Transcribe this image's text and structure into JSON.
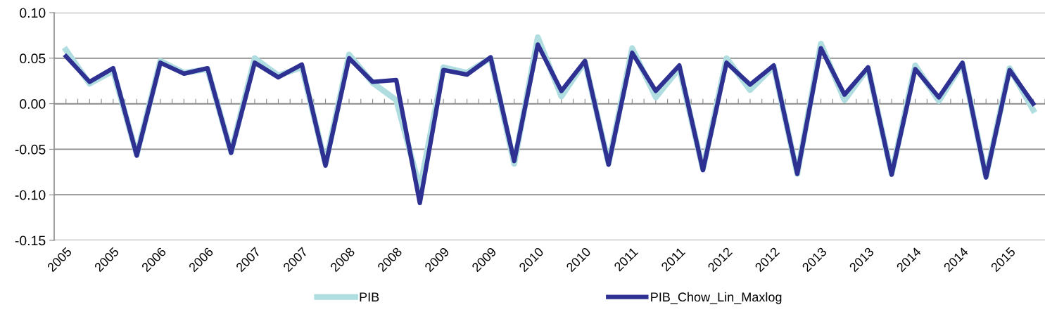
{
  "chart_data": {
    "type": "line",
    "categories": [
      "2005",
      null,
      "2005",
      null,
      "2006",
      null,
      "2006",
      null,
      "2007",
      null,
      "2007",
      null,
      "2008",
      null,
      "2008",
      null,
      "2009",
      null,
      "2009",
      null,
      "2010",
      null,
      "2010",
      null,
      "2011",
      null,
      "2011",
      null,
      "2012",
      null,
      "2012",
      null,
      "2013",
      null,
      "2013",
      null,
      "2014",
      null,
      "2014",
      null,
      "2015",
      null
    ],
    "series": [
      {
        "name": "PIB",
        "color": "#b0dde0",
        "values": [
          0.059,
          0.022,
          0.036,
          -0.056,
          0.047,
          0.034,
          0.038,
          -0.053,
          0.05,
          0.031,
          0.04,
          -0.066,
          0.054,
          0.023,
          0.004,
          -0.093,
          0.04,
          0.034,
          0.05,
          -0.066,
          0.073,
          0.008,
          0.046,
          -0.066,
          0.061,
          0.007,
          0.039,
          -0.072,
          0.05,
          0.015,
          0.041,
          -0.077,
          0.066,
          0.004,
          0.039,
          -0.077,
          0.042,
          0.003,
          0.044,
          -0.08,
          0.039,
          -0.007
        ]
      },
      {
        "name": "PIB_Chow_Lin_Maxlog",
        "color": "#2e3192",
        "values": [
          0.052,
          0.024,
          0.039,
          -0.057,
          0.045,
          0.033,
          0.039,
          -0.054,
          0.045,
          0.029,
          0.043,
          -0.068,
          0.05,
          0.024,
          0.026,
          -0.109,
          0.037,
          0.032,
          0.051,
          -0.063,
          0.065,
          0.014,
          0.047,
          -0.067,
          0.056,
          0.014,
          0.042,
          -0.073,
          0.045,
          0.021,
          0.042,
          -0.077,
          0.061,
          0.01,
          0.04,
          -0.078,
          0.038,
          0.007,
          0.045,
          -0.081,
          0.037,
          0.0
        ]
      }
    ],
    "ylim": [
      -0.15,
      0.1
    ],
    "yticks": [
      {
        "value": -0.15,
        "label": "-0.15"
      },
      {
        "value": -0.1,
        "label": "-0.10"
      },
      {
        "value": -0.05,
        "label": "-0.05"
      },
      {
        "value": 0.0,
        "label": "0.00"
      },
      {
        "value": 0.05,
        "label": "0.05"
      },
      {
        "value": 0.1,
        "label": "0.10"
      }
    ],
    "grid": "y",
    "legend": "bottom",
    "marker": "none",
    "line_style": "solid"
  }
}
